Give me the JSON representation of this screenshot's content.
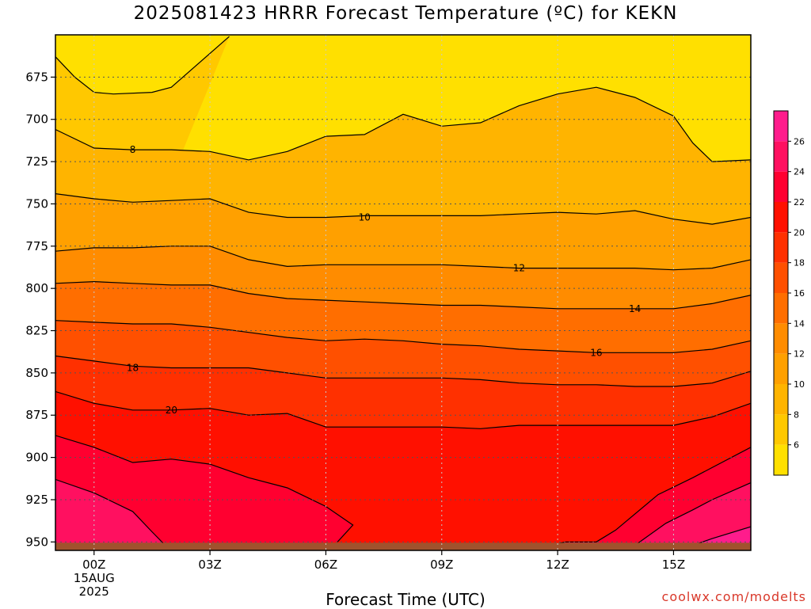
{
  "chart_data": {
    "type": "heatmap",
    "title": "2025081423 HRRR Forecast Temperature (ºC) for KEKN",
    "xlabel": "Forecast Time (UTC)",
    "ylabel": "",
    "x_hours": [
      -1,
      17
    ],
    "x_ticks": [
      {
        "hour": 0,
        "label": "00Z",
        "sub1": "15AUG",
        "sub2": "2025"
      },
      {
        "hour": 3,
        "label": "03Z"
      },
      {
        "hour": 6,
        "label": "06Z"
      },
      {
        "hour": 9,
        "label": "09Z"
      },
      {
        "hour": 12,
        "label": "12Z"
      },
      {
        "hour": 15,
        "label": "15Z"
      }
    ],
    "y_range_hpa": [
      650,
      955
    ],
    "y_ticks": [
      675,
      700,
      725,
      750,
      775,
      800,
      825,
      850,
      875,
      900,
      925,
      950
    ],
    "grid": true,
    "legend": "colorbar-right",
    "colorbar": {
      "levels": [
        4,
        6,
        8,
        10,
        12,
        14,
        16,
        18,
        20,
        22,
        24,
        26,
        28
      ],
      "labels": [
        "6",
        "8",
        "10",
        "12",
        "14",
        "16",
        "18",
        "20",
        "22",
        "24",
        "26"
      ],
      "colors": [
        "#FFE000",
        "#FFC800",
        "#FFB400",
        "#FFA000",
        "#FF8C00",
        "#FF6E00",
        "#FF5000",
        "#FF3000",
        "#FF1000",
        "#FF0030",
        "#FF1060",
        "#FF1C8C"
      ]
    },
    "contours": [
      {
        "level": 6,
        "label": "",
        "points": [
          [
            -1,
            663
          ],
          [
            -0.5,
            675
          ],
          [
            0,
            684
          ],
          [
            0.5,
            685
          ],
          [
            1.5,
            684
          ],
          [
            2,
            681
          ],
          [
            2.5,
            671
          ],
          [
            3.5,
            651
          ]
        ]
      },
      {
        "level": 8,
        "label": "8",
        "points": [
          [
            -1,
            706
          ],
          [
            0,
            717
          ],
          [
            1,
            718
          ],
          [
            2,
            718
          ],
          [
            3,
            719
          ],
          [
            4,
            724
          ],
          [
            5,
            719
          ],
          [
            6,
            710
          ],
          [
            7,
            709
          ],
          [
            8,
            697
          ],
          [
            9,
            704
          ],
          [
            10,
            702
          ],
          [
            11,
            692
          ],
          [
            12,
            685
          ],
          [
            13,
            681
          ],
          [
            14,
            687
          ],
          [
            15,
            698
          ],
          [
            15.5,
            714
          ],
          [
            16,
            725
          ],
          [
            17,
            724
          ]
        ],
        "label_at": [
          1,
          718
        ]
      },
      {
        "level": 10,
        "label": "10",
        "points": [
          [
            -1,
            744
          ],
          [
            0,
            747
          ],
          [
            1,
            749
          ],
          [
            2,
            748
          ],
          [
            3,
            747
          ],
          [
            4,
            755
          ],
          [
            5,
            758
          ],
          [
            6,
            758
          ],
          [
            7,
            757
          ],
          [
            8,
            757
          ],
          [
            9,
            757
          ],
          [
            10,
            757
          ],
          [
            11,
            756
          ],
          [
            12,
            755
          ],
          [
            13,
            756
          ],
          [
            14,
            754
          ],
          [
            15,
            759
          ],
          [
            16,
            762
          ],
          [
            17,
            758
          ]
        ],
        "label_at": [
          7,
          758
        ]
      },
      {
        "level": 12,
        "label": "12",
        "points": [
          [
            -1,
            778
          ],
          [
            0,
            776
          ],
          [
            1,
            776
          ],
          [
            2,
            775
          ],
          [
            3,
            775
          ],
          [
            4,
            783
          ],
          [
            5,
            787
          ],
          [
            6,
            786
          ],
          [
            7,
            786
          ],
          [
            8,
            786
          ],
          [
            9,
            786
          ],
          [
            10,
            787
          ],
          [
            11,
            788
          ],
          [
            12,
            788
          ],
          [
            13,
            788
          ],
          [
            14,
            788
          ],
          [
            15,
            789
          ],
          [
            16,
            788
          ],
          [
            17,
            783
          ]
        ],
        "label_at": [
          11,
          788
        ]
      },
      {
        "level": 14,
        "label": "14",
        "points": [
          [
            -1,
            797
          ],
          [
            0,
            796
          ],
          [
            1,
            797
          ],
          [
            2,
            798
          ],
          [
            3,
            798
          ],
          [
            4,
            803
          ],
          [
            5,
            806
          ],
          [
            6,
            807
          ],
          [
            7,
            808
          ],
          [
            8,
            809
          ],
          [
            9,
            810
          ],
          [
            10,
            810
          ],
          [
            11,
            811
          ],
          [
            12,
            812
          ],
          [
            13,
            812
          ],
          [
            14,
            812
          ],
          [
            15,
            812
          ],
          [
            16,
            809
          ],
          [
            17,
            804
          ]
        ],
        "label_at": [
          14,
          812
        ]
      },
      {
        "level": 16,
        "label": "16",
        "points": [
          [
            -1,
            819
          ],
          [
            0,
            820
          ],
          [
            1,
            821
          ],
          [
            2,
            821
          ],
          [
            3,
            823
          ],
          [
            4,
            826
          ],
          [
            5,
            829
          ],
          [
            6,
            831
          ],
          [
            7,
            830
          ],
          [
            8,
            831
          ],
          [
            9,
            833
          ],
          [
            10,
            834
          ],
          [
            11,
            836
          ],
          [
            12,
            837
          ],
          [
            13,
            838
          ],
          [
            14,
            838
          ],
          [
            15,
            838
          ],
          [
            16,
            836
          ],
          [
            17,
            831
          ]
        ],
        "label_at": [
          13,
          838
        ]
      },
      {
        "level": 18,
        "label": "18",
        "points": [
          [
            -1,
            840
          ],
          [
            0,
            843
          ],
          [
            1,
            846
          ],
          [
            2,
            847
          ],
          [
            3,
            847
          ],
          [
            4,
            847
          ],
          [
            5,
            850
          ],
          [
            6,
            853
          ],
          [
            7,
            853
          ],
          [
            8,
            853
          ],
          [
            9,
            853
          ],
          [
            10,
            854
          ],
          [
            11,
            856
          ],
          [
            12,
            857
          ],
          [
            13,
            857
          ],
          [
            14,
            858
          ],
          [
            15,
            858
          ],
          [
            16,
            856
          ],
          [
            17,
            849
          ]
        ],
        "label_at": [
          1,
          847
        ]
      },
      {
        "level": 20,
        "label": "20",
        "points": [
          [
            -1,
            861
          ],
          [
            0,
            868
          ],
          [
            1,
            872
          ],
          [
            2,
            872
          ],
          [
            3,
            871
          ],
          [
            4,
            875
          ],
          [
            5,
            874
          ],
          [
            6,
            882
          ],
          [
            7,
            882
          ],
          [
            8,
            882
          ],
          [
            9,
            882
          ],
          [
            10,
            883
          ],
          [
            11,
            881
          ],
          [
            12,
            881
          ],
          [
            13,
            881
          ],
          [
            14,
            881
          ],
          [
            15,
            881
          ],
          [
            16,
            876
          ],
          [
            17,
            868
          ]
        ],
        "label_at": [
          2,
          872
        ]
      },
      {
        "level": 22,
        "label": "",
        "points": [
          [
            -1,
            887
          ],
          [
            0,
            894
          ],
          [
            1,
            903
          ],
          [
            2,
            901
          ],
          [
            3,
            904
          ],
          [
            4,
            912
          ],
          [
            5,
            918
          ],
          [
            6,
            929
          ],
          [
            6.7,
            940
          ],
          [
            6.3,
            950
          ]
        ]
      },
      {
        "level": 22,
        "label": "",
        "points": [
          [
            12,
            951
          ],
          [
            12.2,
            950
          ],
          [
            13,
            950
          ],
          [
            13.5,
            943
          ],
          [
            14.6,
            922
          ],
          [
            15.5,
            912
          ],
          [
            16,
            906
          ],
          [
            17,
            894
          ]
        ]
      },
      {
        "level": 24,
        "label": "",
        "points": [
          [
            -1,
            913
          ],
          [
            0,
            921
          ],
          [
            1,
            932
          ],
          [
            1.5,
            944
          ],
          [
            1.8,
            951
          ]
        ]
      },
      {
        "level": 24,
        "label": "",
        "points": [
          [
            14,
            952
          ],
          [
            14.8,
            939
          ],
          [
            15.5,
            931
          ],
          [
            16,
            925
          ],
          [
            17,
            915
          ]
        ]
      },
      {
        "level": 26,
        "label": "",
        "points": [
          [
            15.5,
            952
          ],
          [
            16,
            948
          ],
          [
            17,
            941
          ]
        ]
      }
    ]
  },
  "footer": {
    "credit": "coolwx.com/modelts"
  }
}
